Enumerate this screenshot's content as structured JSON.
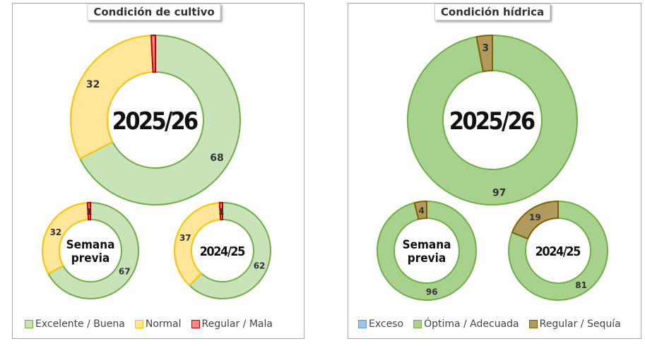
{
  "chart_data": [
    {
      "type": "donut",
      "title": "Condición de cultivo",
      "legend": [
        "Excelente / Buena",
        "Normal",
        "Regular / Mala"
      ],
      "colors": {
        "fill": [
          "#c9e3b8",
          "#ffe699",
          "#ff8585"
        ],
        "stroke": [
          "#70ad47",
          "#ffc000",
          "#c00000"
        ]
      },
      "rings": [
        {
          "label": "2025/26",
          "values": [
            68,
            32,
            0.8
          ],
          "data_labels": [
            "68",
            "32",
            ""
          ]
        },
        {
          "label": "Semana previa",
          "values": [
            67,
            32,
            1
          ],
          "data_labels": [
            "67",
            "32",
            "1"
          ]
        },
        {
          "label": "2024/25",
          "values": [
            62,
            37,
            1
          ],
          "data_labels": [
            "62",
            "37",
            "1"
          ]
        }
      ]
    },
    {
      "type": "donut",
      "title": "Condición hídrica",
      "legend": [
        "Exceso",
        "Óptima / Adecuada",
        "Regular / Sequía"
      ],
      "colors": {
        "fill": [
          "#9dc3e6",
          "#a9d18e",
          "#b09a5e"
        ],
        "stroke": [
          "#5b9bd5",
          "#70ad47",
          "#7f6000"
        ]
      },
      "rings": [
        {
          "label": "2025/26",
          "values": [
            0,
            97,
            3
          ],
          "data_labels": [
            "",
            "97",
            "3"
          ]
        },
        {
          "label": "Semana previa",
          "values": [
            0,
            96,
            4
          ],
          "data_labels": [
            "",
            "96",
            "4"
          ]
        },
        {
          "label": "2024/25",
          "values": [
            0,
            81,
            19
          ],
          "data_labels": [
            "",
            "81",
            "19"
          ]
        }
      ]
    }
  ]
}
